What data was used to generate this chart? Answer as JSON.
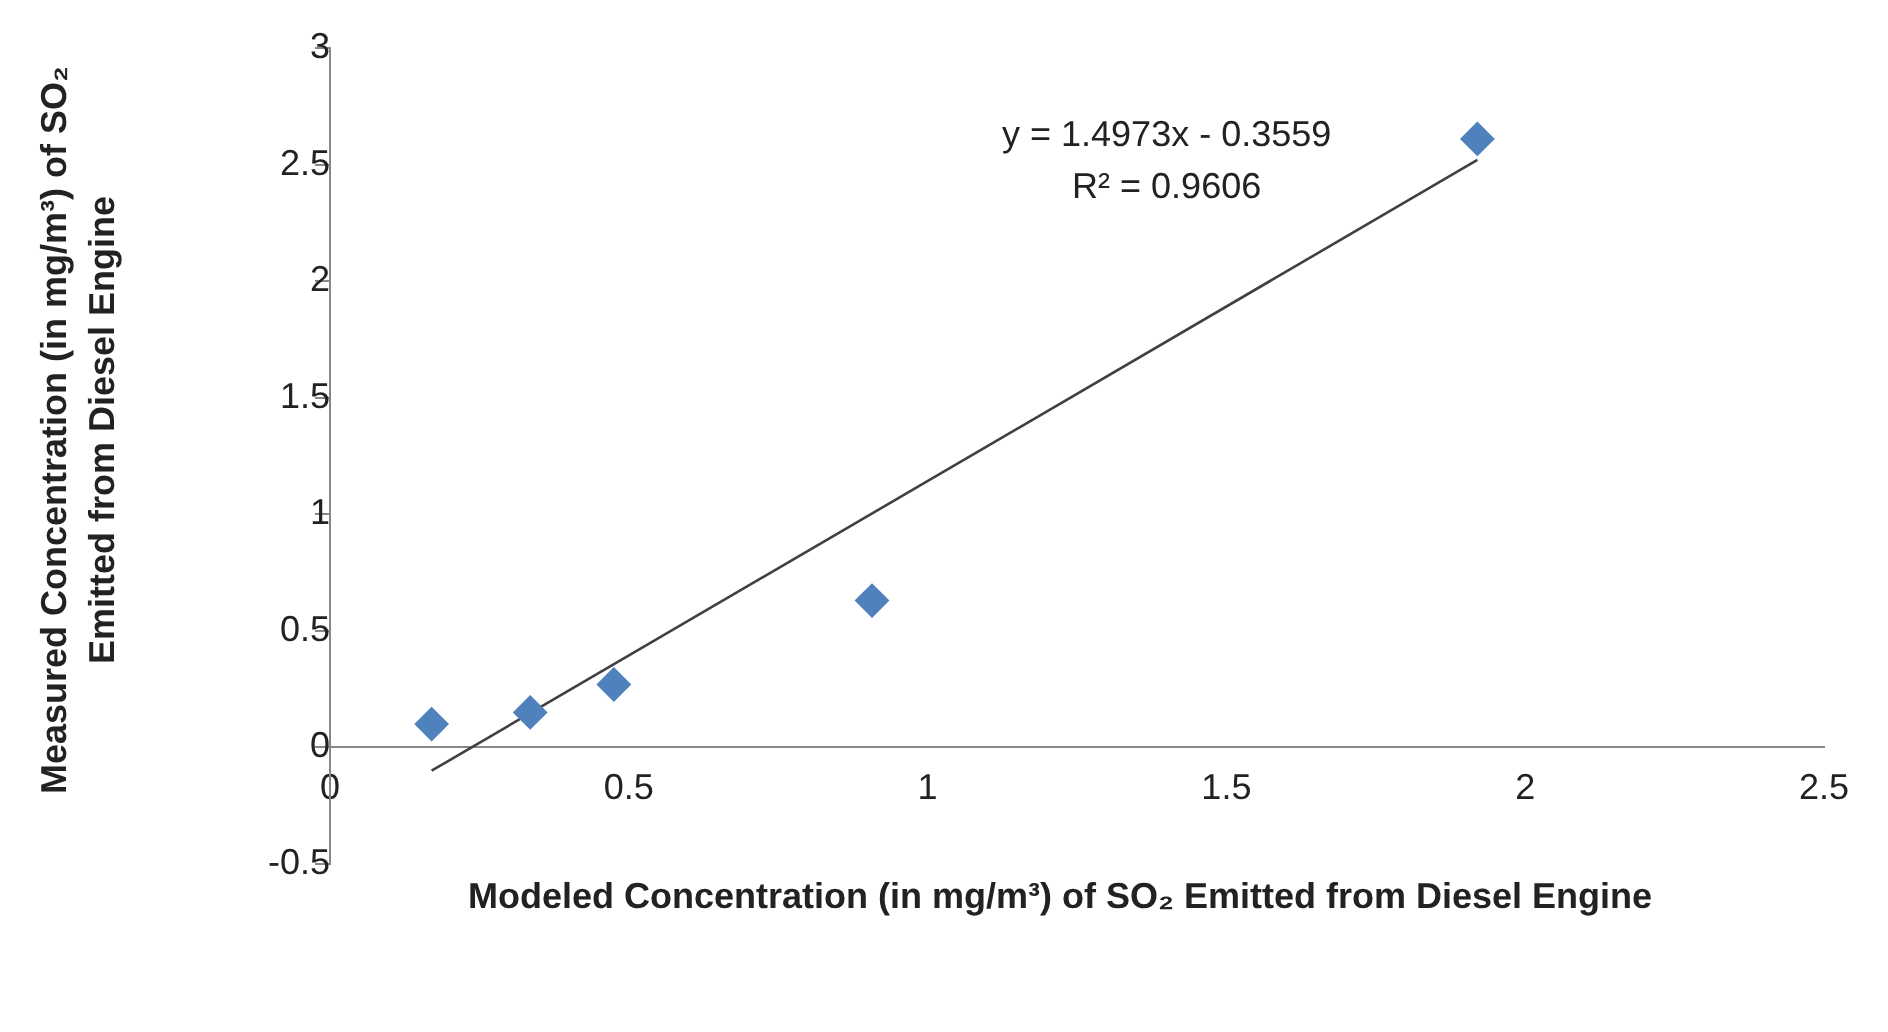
{
  "chart_data": {
    "type": "scatter",
    "xlabel": "Modeled Concentration (in mg/m³) of SO₂ Emitted from Diesel Engine",
    "ylabel": "Measured Concentration (in mg/m³) of SO₂ Emitted from Diesel Engine",
    "series": [
      {
        "color": "#4f81bd",
        "marker": "diamond",
        "x": [
          0.17,
          0.335,
          0.475,
          0.907,
          1.92
        ],
        "values": [
          0.1,
          0.15,
          0.27,
          0.63,
          2.61
        ]
      },
      {
        "type": "line",
        "color": "#404040",
        "line_style": "solid",
        "x": [
          0.17,
          1.92
        ],
        "values": [
          -0.1,
          2.52
        ]
      }
    ],
    "annotations": [
      "y = 1.4973x - 0.3559",
      "R² = 0.9606"
    ],
    "xlim": [
      0,
      2.5
    ],
    "xticks": [
      0,
      0.5,
      1,
      1.5,
      2,
      2.5
    ],
    "ylim": [
      -0.5,
      3
    ],
    "yticks": [
      -0.5,
      0,
      0.5,
      1,
      1.5,
      2,
      2.5,
      3
    ]
  }
}
